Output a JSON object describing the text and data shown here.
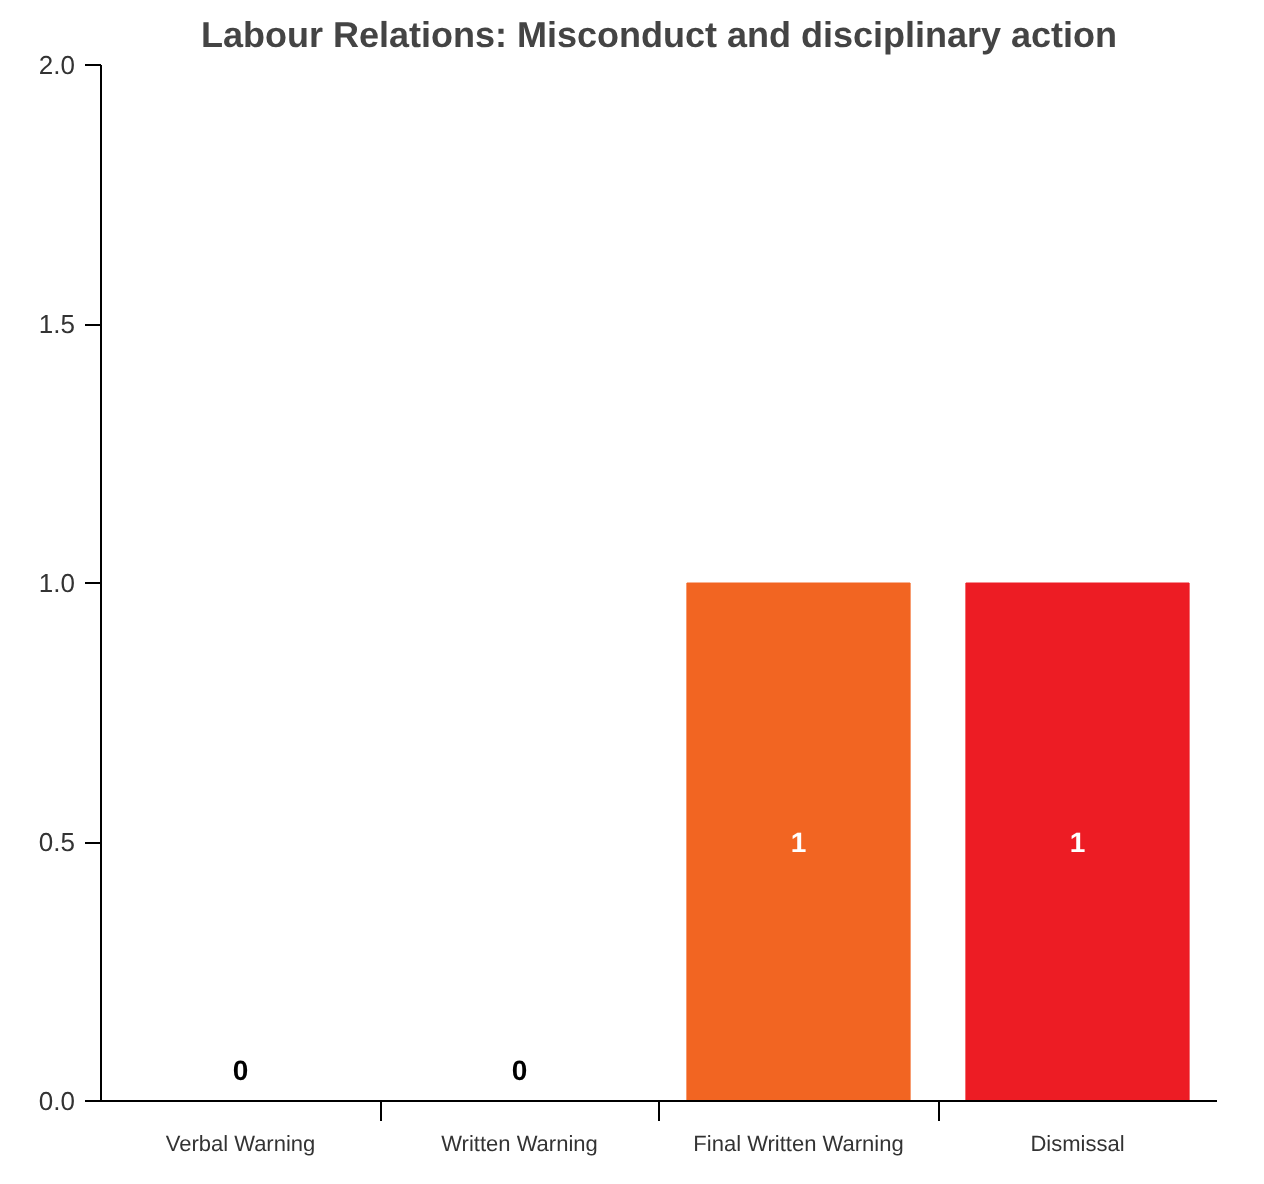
{
  "chart_data": {
    "type": "bar",
    "title": "Labour Relations: Misconduct and disciplinary action",
    "categories": [
      "Verbal Warning",
      "Written Warning",
      "Final Written Warning",
      "Dismissal"
    ],
    "values": [
      0,
      0,
      1,
      1
    ],
    "colors": [
      "#1f4e9c",
      "#3a8f3a",
      "#f26522",
      "#ed1c24"
    ],
    "ylim": [
      0,
      2
    ],
    "yticks": [
      {
        "value": 0,
        "label": "0.0"
      },
      {
        "value": 0.5,
        "label": "0.5"
      },
      {
        "value": 1,
        "label": "1.0"
      },
      {
        "value": 1.5,
        "label": "1.5"
      },
      {
        "value": 2,
        "label": "2.0"
      }
    ],
    "grid": false,
    "data_labels": true
  }
}
